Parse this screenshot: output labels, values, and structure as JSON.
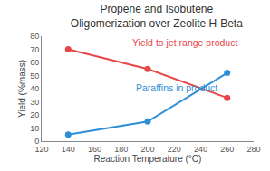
{
  "chart_data": {
    "type": "line",
    "title": [
      "Propene and Isobutene",
      "Oligomerization over Zeolite H-Beta"
    ],
    "x_label": "Reaction Temperature (°C)",
    "y_label": "Yield (%mass)",
    "x": [
      140,
      200,
      260
    ],
    "series": [
      {
        "name": "Yield to jet range product",
        "color": "#e8474a",
        "values": [
          70,
          55,
          33
        ]
      },
      {
        "name": "Paraffins in product",
        "color": "#2e8fd8",
        "values": [
          5,
          15,
          52
        ]
      }
    ],
    "xlim": [
      120,
      280
    ],
    "xticks": [
      120,
      140,
      160,
      180,
      200,
      220,
      240,
      260,
      280
    ],
    "ylim": [
      0,
      80
    ],
    "yticks": [
      0,
      10,
      20,
      30,
      40,
      50,
      60,
      70,
      80
    ],
    "grid": false,
    "marker": "circle"
  }
}
